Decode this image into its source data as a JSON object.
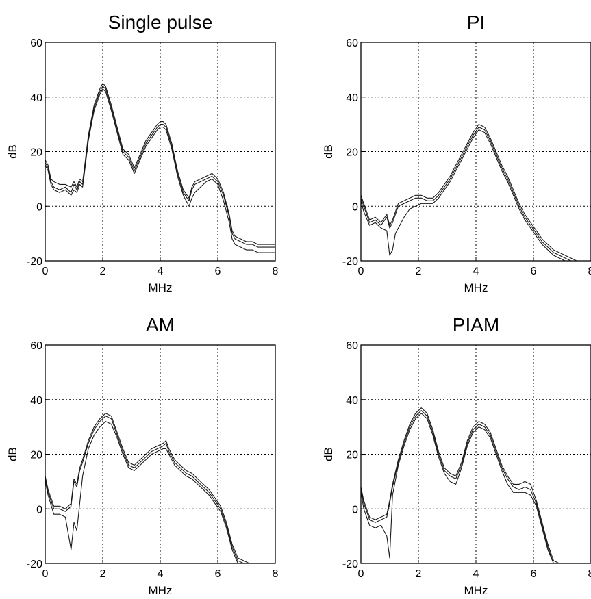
{
  "figure": {
    "background": "#ffffff",
    "line_color": "#1a1a1a",
    "grid_color": "#000000"
  },
  "chart_data": [
    {
      "type": "line",
      "title": "Single pulse",
      "xlabel": "MHz",
      "ylabel": "dB",
      "xlim": [
        0,
        8
      ],
      "ylim": [
        -20,
        60
      ],
      "xticks": [
        "0",
        "2",
        "4",
        "6",
        "8"
      ],
      "yticks": [
        "-20",
        "0",
        "20",
        "40",
        "60"
      ],
      "grid": true,
      "x": [
        0,
        0.1,
        0.2,
        0.3,
        0.5,
        0.7,
        0.9,
        1.0,
        1.1,
        1.2,
        1.3,
        1.35,
        1.5,
        1.7,
        1.9,
        2.0,
        2.1,
        2.3,
        2.5,
        2.7,
        2.9,
        3.1,
        3.3,
        3.5,
        3.7,
        3.9,
        4.0,
        4.1,
        4.2,
        4.4,
        4.6,
        4.8,
        5.0,
        5.1,
        5.2,
        5.4,
        5.6,
        5.8,
        5.9,
        6.0,
        6.2,
        6.4,
        6.5,
        6.6,
        6.8,
        7.0,
        7.2,
        7.4,
        7.6,
        7.8,
        8.0
      ],
      "series": [
        {
          "values": [
            16,
            14,
            9,
            7,
            6,
            7,
            5,
            8,
            6,
            9,
            8,
            12,
            25,
            36,
            42,
            44,
            43,
            36,
            28,
            20,
            18,
            13,
            18,
            23,
            26,
            29,
            30,
            30,
            29,
            22,
            12,
            5,
            2,
            6,
            8,
            9,
            10,
            11,
            10,
            9,
            4,
            -4,
            -10,
            -12,
            -13,
            -14,
            -14,
            -15,
            -15,
            -15,
            -15
          ]
        },
        {
          "values": [
            17,
            15,
            10,
            9,
            8,
            8,
            7,
            9,
            7,
            10,
            9,
            13,
            26,
            37,
            43,
            45,
            44,
            37,
            29,
            21,
            19,
            14,
            19,
            24,
            27,
            30,
            31,
            31,
            30,
            23,
            13,
            6,
            3,
            7,
            9,
            10,
            11,
            12,
            11,
            10,
            5,
            -3,
            -9,
            -11,
            -12,
            -13,
            -13,
            -14,
            -14,
            -14,
            -14
          ]
        },
        {
          "values": [
            15,
            13,
            8,
            6,
            5,
            6,
            4,
            6,
            5,
            8,
            7,
            11,
            24,
            35,
            41,
            43,
            42,
            35,
            27,
            19,
            17,
            12,
            17,
            22,
            25,
            28,
            29,
            29,
            28,
            21,
            11,
            4,
            0,
            3,
            5,
            7,
            9,
            10,
            9,
            8,
            2,
            -6,
            -12,
            -14,
            -15,
            -16,
            -16,
            -17,
            -17,
            -17,
            -17
          ]
        }
      ]
    },
    {
      "type": "line",
      "title": "PI",
      "xlabel": "MHz",
      "ylabel": "dB",
      "xlim": [
        0,
        8
      ],
      "ylim": [
        -20,
        60
      ],
      "xticks": [
        "0",
        "2",
        "4",
        "6",
        "8"
      ],
      "yticks": [
        "-20",
        "0",
        "20",
        "40",
        "60"
      ],
      "grid": true,
      "x": [
        0,
        0.1,
        0.3,
        0.5,
        0.7,
        0.9,
        1.0,
        1.1,
        1.2,
        1.3,
        1.5,
        1.7,
        1.9,
        2.1,
        2.3,
        2.5,
        2.7,
        2.9,
        3.1,
        3.3,
        3.5,
        3.7,
        3.9,
        4.1,
        4.3,
        4.5,
        4.7,
        4.9,
        5.1,
        5.3,
        5.5,
        5.7,
        5.9,
        6.1,
        6.3,
        6.5,
        6.7,
        6.9,
        7.1,
        7.3,
        7.5,
        7.7,
        8.0
      ],
      "series": [
        {
          "values": [
            3,
            0,
            -6,
            -5,
            -7,
            -4,
            -8,
            -6,
            -3,
            0,
            1,
            2,
            3,
            3,
            2,
            2,
            4,
            7,
            10,
            14,
            18,
            22,
            26,
            29,
            28,
            24,
            19,
            14,
            10,
            5,
            0,
            -4,
            -7,
            -10,
            -13,
            -15,
            -17,
            -18,
            -19,
            -20,
            -20,
            -20,
            -20
          ]
        },
        {
          "values": [
            4,
            1,
            -5,
            -4,
            -6,
            -3,
            -7,
            -5,
            -2,
            1,
            2,
            3,
            4,
            4,
            3,
            3,
            5,
            8,
            11,
            15,
            19,
            23,
            27,
            30,
            29,
            25,
            20,
            15,
            11,
            6,
            1,
            -3,
            -6,
            -9,
            -12,
            -14,
            -16,
            -17,
            -18,
            -19,
            -20,
            -20,
            -20
          ]
        },
        {
          "values": [
            2,
            -2,
            -7,
            -6,
            -8,
            -9,
            -18,
            -16,
            -10,
            -8,
            -4,
            -1,
            0,
            1,
            1,
            1,
            3,
            6,
            9,
            13,
            17,
            21,
            25,
            28,
            27,
            23,
            18,
            13,
            9,
            4,
            -1,
            -5,
            -8,
            -11,
            -14,
            -16,
            -18,
            -19,
            -20,
            -20,
            -20,
            -20,
            -20
          ]
        }
      ]
    },
    {
      "type": "line",
      "title": "AM",
      "xlabel": "MHz",
      "ylabel": "dB",
      "xlim": [
        0,
        8
      ],
      "ylim": [
        -20,
        60
      ],
      "xticks": [
        "0",
        "2",
        "4",
        "6",
        "8"
      ],
      "yticks": [
        "-20",
        "0",
        "20",
        "40",
        "60"
      ],
      "grid": true,
      "x": [
        0,
        0.1,
        0.3,
        0.5,
        0.7,
        0.9,
        1.0,
        1.1,
        1.2,
        1.3,
        1.5,
        1.7,
        1.9,
        2.1,
        2.3,
        2.5,
        2.7,
        2.9,
        3.1,
        3.3,
        3.5,
        3.7,
        3.9,
        4.1,
        4.2,
        4.3,
        4.5,
        4.7,
        4.9,
        5.1,
        5.3,
        5.5,
        5.7,
        5.9,
        6.1,
        6.3,
        6.5,
        6.7,
        6.9,
        7.1,
        7.3,
        7.5,
        7.7,
        8.0
      ],
      "series": [
        {
          "values": [
            11,
            6,
            0,
            0,
            -1,
            1,
            10,
            8,
            14,
            17,
            24,
            29,
            32,
            34,
            33,
            27,
            21,
            16,
            15,
            17,
            19,
            21,
            22,
            23,
            24,
            21,
            17,
            15,
            13,
            12,
            10,
            8,
            6,
            3,
            0,
            -6,
            -14,
            -19,
            -20,
            -20,
            -20,
            -20,
            -20,
            -20
          ]
        },
        {
          "values": [
            12,
            7,
            1,
            1,
            0,
            2,
            11,
            9,
            15,
            18,
            25,
            30,
            33,
            35,
            34,
            28,
            22,
            17,
            16,
            18,
            20,
            22,
            23,
            24,
            25,
            22,
            18,
            16,
            14,
            13,
            11,
            9,
            7,
            4,
            1,
            -5,
            -13,
            -18,
            -19,
            -20,
            -20,
            -20,
            -20,
            -20
          ]
        },
        {
          "values": [
            10,
            5,
            -2,
            -2,
            -3,
            -15,
            -5,
            -8,
            2,
            12,
            22,
            27,
            30,
            32,
            31,
            26,
            20,
            15,
            14,
            16,
            18,
            20,
            21,
            22,
            22,
            20,
            16,
            14,
            12,
            11,
            9,
            7,
            5,
            2,
            -1,
            -7,
            -15,
            -20,
            -20,
            -20,
            -20,
            -20,
            -20,
            -20
          ]
        }
      ]
    },
    {
      "type": "line",
      "title": "PIAM",
      "xlabel": "MHz",
      "ylabel": "dB",
      "xlim": [
        0,
        8
      ],
      "ylim": [
        -20,
        60
      ],
      "xticks": [
        "0",
        "2",
        "4",
        "6",
        "8"
      ],
      "yticks": [
        "-20",
        "0",
        "20",
        "40",
        "60"
      ],
      "grid": true,
      "x": [
        0,
        0.1,
        0.3,
        0.5,
        0.7,
        0.9,
        1.0,
        1.1,
        1.3,
        1.5,
        1.7,
        1.9,
        2.1,
        2.3,
        2.5,
        2.7,
        2.9,
        3.1,
        3.3,
        3.5,
        3.7,
        3.9,
        4.1,
        4.3,
        4.5,
        4.7,
        4.9,
        5.1,
        5.3,
        5.5,
        5.7,
        5.9,
        6.1,
        6.3,
        6.5,
        6.7,
        6.9,
        7.1,
        7.3
      ],
      "series": [
        {
          "values": [
            7,
            2,
            -4,
            -5,
            -4,
            -3,
            2,
            8,
            17,
            24,
            30,
            34,
            36,
            34,
            28,
            20,
            14,
            12,
            11,
            16,
            24,
            29,
            31,
            30,
            27,
            21,
            15,
            11,
            8,
            7,
            8,
            7,
            2,
            -6,
            -14,
            -20,
            -20,
            -20,
            -20
          ]
        },
        {
          "values": [
            8,
            3,
            -3,
            -4,
            -3,
            -2,
            3,
            9,
            18,
            25,
            31,
            35,
            37,
            35,
            29,
            21,
            15,
            13,
            12,
            17,
            25,
            30,
            32,
            31,
            28,
            22,
            16,
            12,
            9,
            9,
            10,
            9,
            3,
            -5,
            -13,
            -19,
            -20,
            -20,
            -20
          ]
        },
        {
          "values": [
            6,
            0,
            -6,
            -7,
            -6,
            -10,
            -18,
            5,
            16,
            23,
            29,
            33,
            35,
            33,
            27,
            19,
            13,
            10,
            9,
            15,
            23,
            28,
            30,
            29,
            26,
            20,
            14,
            9,
            6,
            6,
            6,
            5,
            1,
            -7,
            -15,
            -20,
            -20,
            -20,
            -20
          ]
        }
      ]
    }
  ]
}
